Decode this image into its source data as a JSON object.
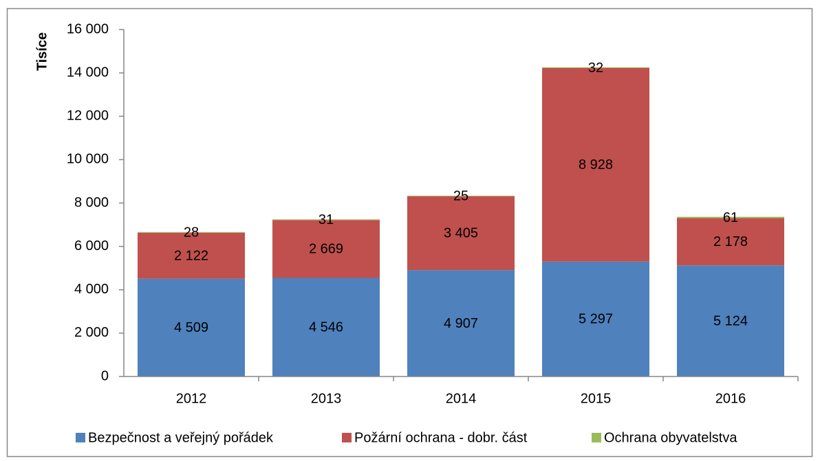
{
  "chart_data": {
    "type": "stacked_bar",
    "y_label": "Tisíce",
    "categories": [
      "2012",
      "2013",
      "2014",
      "2015",
      "2016"
    ],
    "series": [
      {
        "name": "Bezpečnost a veřejný pořádek",
        "color": "#4f81bd",
        "values": [
          4509,
          4546,
          4907,
          5297,
          5124
        ],
        "value_labels": [
          "4 509",
          "4 546",
          "4 907",
          "5 297",
          "5 124"
        ]
      },
      {
        "name": "Požární ochrana - dobr. část",
        "color": "#c0504d",
        "values": [
          2122,
          2669,
          3405,
          8928,
          2178
        ],
        "value_labels": [
          "2 122",
          "2 669",
          "3 405",
          "8 928",
          "2 178"
        ]
      },
      {
        "name": "Ochrana obyvatelstva",
        "color": "#9bbb59",
        "values": [
          28,
          31,
          25,
          32,
          61
        ]
      }
    ],
    "ylim": [
      0,
      16000
    ],
    "yticks": [
      0,
      {
        "value": 2000,
        "label": "2 000"
      },
      {
        "value": 4000,
        "label": "4 000"
      },
      {
        "value": 6000,
        "label": "6 000"
      },
      {
        "value": 8000,
        "label": "8 000"
      },
      {
        "value": 10000,
        "label": "10 000"
      },
      {
        "value": 12000,
        "label": "12 000"
      },
      {
        "value": 14000,
        "label": "14 000"
      },
      {
        "value": 16000,
        "label": "16 000"
      }
    ],
    "legend": "bottom"
  }
}
